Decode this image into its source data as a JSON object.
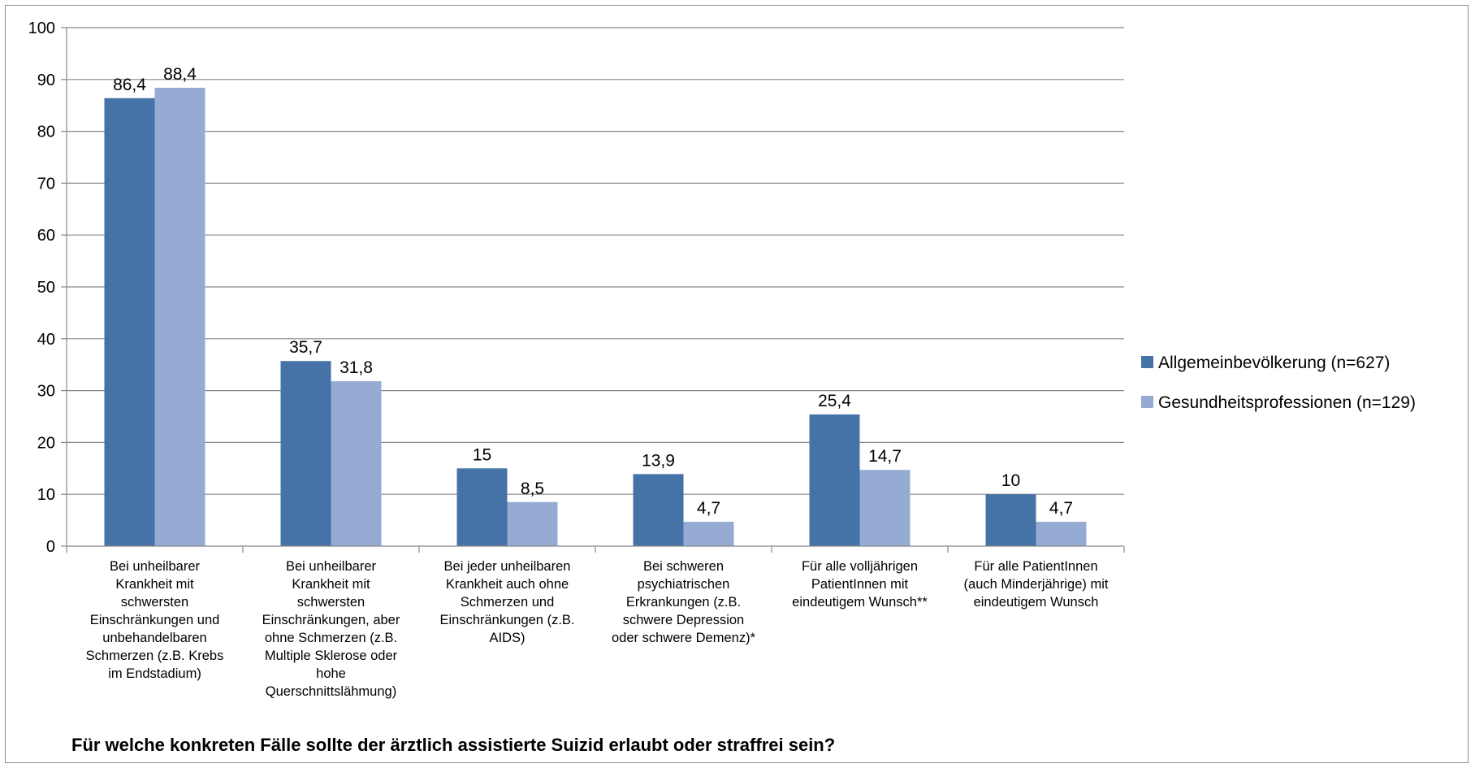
{
  "chart_data": {
    "type": "bar",
    "title": "",
    "caption": "Für welche konkreten Fälle sollte der ärztlich assistierte Suizid erlaubt oder straffrei sein?",
    "xlabel": "",
    "ylabel": "",
    "ylim": [
      0,
      100
    ],
    "yticks": [
      "0",
      "10",
      "20",
      "30",
      "40",
      "50",
      "60",
      "70",
      "80",
      "90",
      "100"
    ],
    "grid": true,
    "legend_position": "right",
    "categories": [
      [
        "Bei unheilbarer",
        "Krankheit mit",
        "schwersten",
        "Einschränkungen und",
        "unbehandelbaren",
        "Schmerzen (z.B. Krebs",
        "im Endstadium)"
      ],
      [
        "Bei unheilbarer",
        "Krankheit mit",
        "schwersten",
        "Einschränkungen, aber",
        "ohne Schmerzen (z.B.",
        "Multiple Sklerose oder",
        "hohe",
        "Querschnittslähmung)"
      ],
      [
        "Bei jeder unheilbaren",
        "Krankheit auch ohne",
        "Schmerzen und",
        "Einschränkungen (z.B.",
        "AIDS)"
      ],
      [
        "Bei schweren",
        "psychiatrischen",
        "Erkrankungen (z.B.",
        "schwere Depression",
        "oder schwere Demenz)*"
      ],
      [
        "Für alle volljährigen",
        "PatientInnen mit",
        "eindeutigem Wunsch**"
      ],
      [
        "Für alle PatientInnen",
        "(auch Minderjährige) mit",
        "eindeutigem Wunsch"
      ]
    ],
    "series": [
      {
        "name": "Allgemeinbevölkerung (n=627)",
        "color": "#4573a7",
        "values": [
          86.4,
          35.7,
          15,
          13.9,
          25.4,
          10
        ],
        "labels": [
          "86,4",
          "35,7",
          "15",
          "13,9",
          "25,4",
          "10"
        ]
      },
      {
        "name": "Gesundheitsprofessionen (n=129)",
        "color": "#95abd3",
        "values": [
          88.4,
          31.8,
          8.5,
          4.7,
          14.7,
          4.7
        ],
        "labels": [
          "88,4",
          "31,8",
          "8,5",
          "4,7",
          "14,7",
          "4,7"
        ]
      }
    ]
  }
}
